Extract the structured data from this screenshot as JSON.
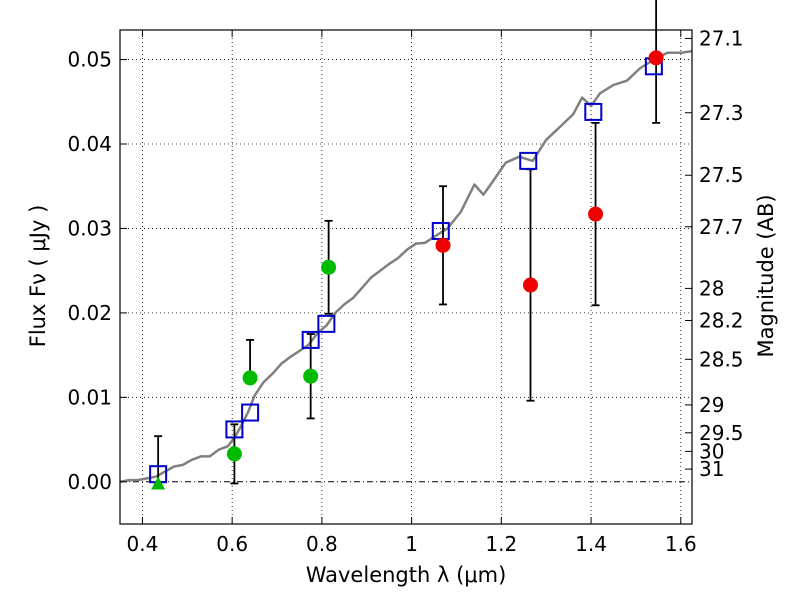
{
  "chart_data": {
    "type": "scatter",
    "xlabel": "Wavelength  λ (μm)",
    "ylabel_left": "Flux  Fν  ( μJy )",
    "ylabel_right": "Magnitude (AB)",
    "xlim": [
      0.35,
      1.625
    ],
    "ylim": [
      -0.005,
      0.0535
    ],
    "grid": true,
    "x_ticks": [
      0.4,
      0.6,
      0.8,
      1,
      1.2,
      1.4,
      1.6
    ],
    "x_tick_labels": [
      "0.4",
      "0.6",
      "0.8",
      "1",
      "1.2",
      "1.4",
      "1.6"
    ],
    "y_ticks": [
      0.0,
      0.01,
      0.02,
      0.03,
      0.04,
      0.05
    ],
    "y_tick_labels": [
      "0.00",
      "0.01",
      "0.02",
      "0.03",
      "0.04",
      "0.05"
    ],
    "right_ticks": [
      {
        "label": "27.1",
        "flux": 0.0525
      },
      {
        "label": "27.3",
        "flux": 0.0437
      },
      {
        "label": "27.5",
        "flux": 0.0363
      },
      {
        "label": "27.7",
        "flux": 0.0302
      },
      {
        "label": "28",
        "flux": 0.0229
      },
      {
        "label": "28.2",
        "flux": 0.0191
      },
      {
        "label": "28.5",
        "flux": 0.0145
      },
      {
        "label": "29",
        "flux": 0.0091
      },
      {
        "label": "29.5",
        "flux": 0.0058
      },
      {
        "label": "30",
        "flux": 0.0036
      },
      {
        "label": "31",
        "flux": 0.0015
      }
    ],
    "model_spectrum": {
      "color": "#808080",
      "points": [
        [
          0.35,
          0.0
        ],
        [
          0.37,
          0.0002
        ],
        [
          0.39,
          0.0002
        ],
        [
          0.41,
          0.0004
        ],
        [
          0.43,
          0.0006
        ],
        [
          0.45,
          0.0012
        ],
        [
          0.47,
          0.0018
        ],
        [
          0.49,
          0.002
        ],
        [
          0.51,
          0.0026
        ],
        [
          0.53,
          0.003
        ],
        [
          0.55,
          0.003
        ],
        [
          0.57,
          0.0038
        ],
        [
          0.59,
          0.0042
        ],
        [
          0.605,
          0.0052
        ],
        [
          0.62,
          0.0066
        ],
        [
          0.635,
          0.0082
        ],
        [
          0.65,
          0.0102
        ],
        [
          0.67,
          0.0118
        ],
        [
          0.69,
          0.0128
        ],
        [
          0.71,
          0.014
        ],
        [
          0.73,
          0.0148
        ],
        [
          0.75,
          0.0155
        ],
        [
          0.77,
          0.0162
        ],
        [
          0.79,
          0.0176
        ],
        [
          0.81,
          0.0185
        ],
        [
          0.83,
          0.02
        ],
        [
          0.85,
          0.021
        ],
        [
          0.87,
          0.0218
        ],
        [
          0.89,
          0.023
        ],
        [
          0.91,
          0.0242
        ],
        [
          0.93,
          0.025
        ],
        [
          0.95,
          0.0258
        ],
        [
          0.97,
          0.0265
        ],
        [
          0.99,
          0.0275
        ],
        [
          1.01,
          0.0282
        ],
        [
          1.03,
          0.0283
        ],
        [
          1.05,
          0.029
        ],
        [
          1.08,
          0.03
        ],
        [
          1.11,
          0.032
        ],
        [
          1.14,
          0.0352
        ],
        [
          1.16,
          0.034
        ],
        [
          1.18,
          0.0355
        ],
        [
          1.21,
          0.0378
        ],
        [
          1.24,
          0.0385
        ],
        [
          1.27,
          0.038
        ],
        [
          1.3,
          0.0405
        ],
        [
          1.33,
          0.042
        ],
        [
          1.36,
          0.0435
        ],
        [
          1.38,
          0.0455
        ],
        [
          1.4,
          0.0445
        ],
        [
          1.42,
          0.046
        ],
        [
          1.45,
          0.047
        ],
        [
          1.48,
          0.0475
        ],
        [
          1.51,
          0.049
        ],
        [
          1.54,
          0.05
        ],
        [
          1.57,
          0.0508
        ],
        [
          1.6,
          0.0508
        ],
        [
          1.625,
          0.051
        ]
      ]
    },
    "model_photometry": {
      "color": "#0000cc",
      "marker": "square",
      "points": [
        [
          0.435,
          0.0009
        ],
        [
          0.605,
          0.0062
        ],
        [
          0.64,
          0.0082
        ],
        [
          0.775,
          0.0168
        ],
        [
          0.81,
          0.0187
        ],
        [
          1.065,
          0.0297
        ],
        [
          1.26,
          0.038
        ],
        [
          1.405,
          0.0438
        ],
        [
          1.54,
          0.0492
        ]
      ]
    },
    "observed_optical": {
      "color": "#00bb00",
      "marker": "circle",
      "points": [
        {
          "x": 0.605,
          "y": 0.0033,
          "err_lo": 0.0035,
          "err_hi": 0.0035
        },
        {
          "x": 0.64,
          "y": 0.0123,
          "err_lo": 0.0,
          "err_hi": 0.0045
        },
        {
          "x": 0.775,
          "y": 0.0125,
          "err_lo": 0.005,
          "err_hi": 0.005
        },
        {
          "x": 0.815,
          "y": 0.0254,
          "err_lo": 0.0055,
          "err_hi": 0.0055
        }
      ]
    },
    "observed_upper_limit": {
      "color": "#00bb00",
      "marker": "triangle",
      "points": [
        {
          "x": 0.435,
          "y": -0.0002,
          "err_hi": 0.0056
        }
      ]
    },
    "observed_nir": {
      "color": "#ee0000",
      "marker": "circle",
      "points": [
        {
          "x": 1.07,
          "y": 0.028,
          "err_lo": 0.007,
          "err_hi": 0.007
        },
        {
          "x": 1.265,
          "y": 0.0233,
          "err_lo": 0.0137,
          "err_hi": 0.0137
        },
        {
          "x": 1.41,
          "y": 0.0317,
          "err_lo": 0.0108,
          "err_hi": 0.0108
        },
        {
          "x": 1.545,
          "y": 0.0502,
          "err_lo": 0.0077,
          "err_hi": 0.0077
        }
      ]
    }
  }
}
